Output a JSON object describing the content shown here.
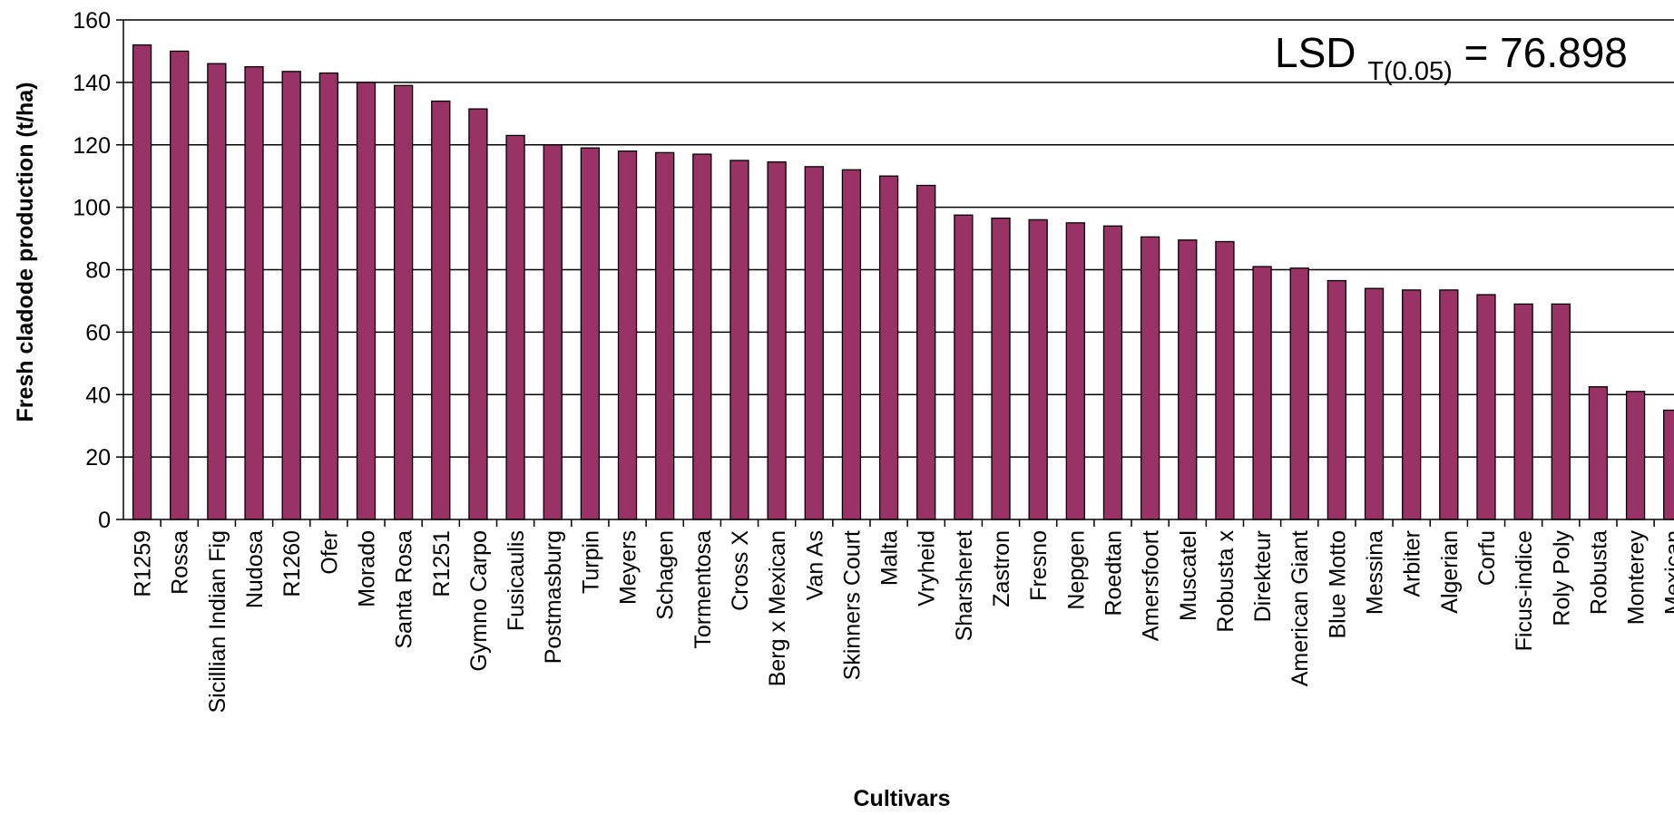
{
  "chart_data": {
    "type": "bar",
    "xlabel": "Cultivars",
    "ylabel": "Fresh cladode  production (t/ha)",
    "ylim": [
      0,
      160
    ],
    "yticks": [
      0,
      20,
      40,
      60,
      80,
      100,
      120,
      140,
      160
    ],
    "grid": true,
    "bar_color": "#993366",
    "annotation": {
      "prefix": "LSD ",
      "subscript": "T(0.05)",
      "suffix": " = 76.898"
    },
    "categories": [
      "R1259",
      "Rossa",
      "Sicillian Indian Fig",
      "Nudosa",
      "R1260",
      "Ofer",
      "Morado",
      "Santa Rosa",
      "R1251",
      "Gymno Carpo",
      "Fusicaulis",
      "Postmasburg",
      "Turpin",
      "Meyers",
      "Schagen",
      "Tormentosa",
      "Cross X",
      "Berg x Mexican",
      "Van As",
      "Skinners Court",
      "Malta",
      "Vryheid",
      "Sharsheret",
      "Zastron",
      "Fresno",
      "Nepgen",
      "Roedtan",
      "Amersfoort",
      "Muscatel",
      "Robusta x",
      "Direkteur",
      "American Giant",
      "Blue Motto",
      "Messina",
      "Arbiter",
      "Algerian",
      "Corfu",
      "Ficus-indice",
      "Roly Poly",
      "Robusta",
      "Monterey",
      "Mexican"
    ],
    "values": [
      152,
      150,
      146,
      145,
      143.5,
      143,
      140,
      139,
      134,
      131.5,
      123,
      120,
      119,
      118,
      117.5,
      117,
      115,
      114.5,
      113,
      112,
      110,
      107,
      97.5,
      96.5,
      96,
      95,
      94,
      90.5,
      89.5,
      89,
      81,
      80.5,
      76.5,
      74,
      73.5,
      73.5,
      72,
      69,
      69,
      42.5,
      41,
      35
    ]
  }
}
